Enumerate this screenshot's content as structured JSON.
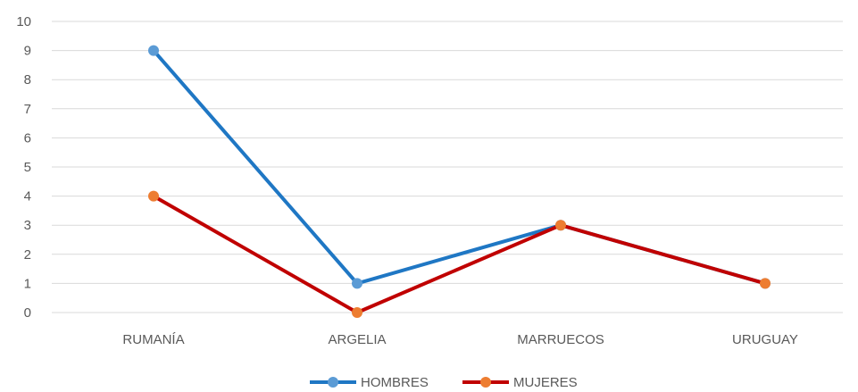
{
  "chart_data": {
    "type": "line",
    "title": "",
    "xlabel": "",
    "ylabel": "",
    "categories": [
      "RUMANÍA",
      "ARGELIA",
      "MARRUECOS",
      "URUGUAY"
    ],
    "ylim": [
      0,
      10
    ],
    "yticks": [
      0,
      1,
      2,
      3,
      4,
      5,
      6,
      7,
      8,
      9,
      10
    ],
    "grid": true,
    "legend_position": "bottom",
    "series": [
      {
        "name": "HOMBRES",
        "values": [
          9,
          1,
          3,
          1
        ],
        "line_color": "#1f77c4",
        "marker_color": "#5b9bd5"
      },
      {
        "name": "MUJERES",
        "values": [
          4,
          0,
          3,
          1
        ],
        "line_color": "#c00000",
        "marker_color": "#ed7d31"
      }
    ]
  }
}
